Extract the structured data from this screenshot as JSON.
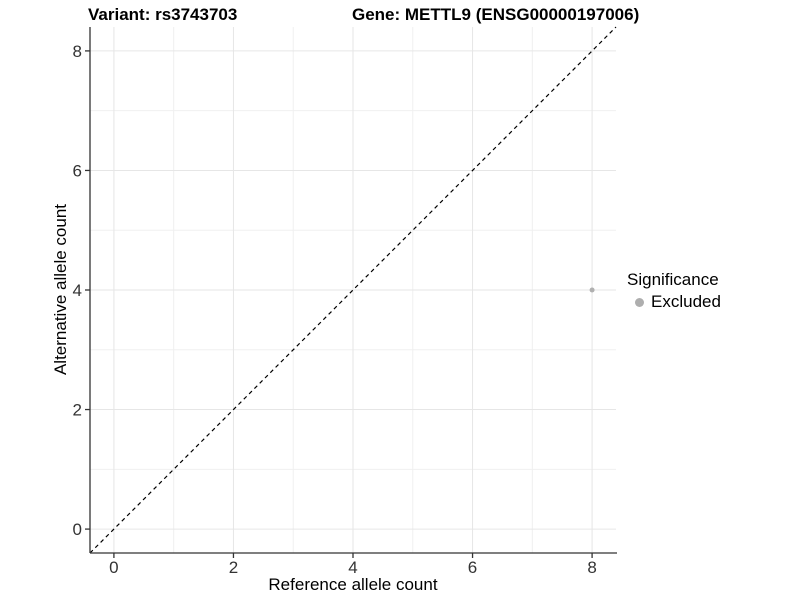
{
  "chart_data": {
    "type": "scatter",
    "titles": {
      "left": "Variant: rs3743703",
      "right": "Gene: METTL9 (ENSG00000197006)"
    },
    "xlabel": "Reference allele count",
    "ylabel": "Alternative allele count",
    "xlim": [
      -0.4,
      8.4
    ],
    "ylim": [
      -0.4,
      8.4
    ],
    "xticks": [
      0,
      2,
      4,
      6,
      8
    ],
    "yticks": [
      0,
      2,
      4,
      6,
      8
    ],
    "xticks_minor": [
      1,
      3,
      5,
      7
    ],
    "yticks_minor": [
      1,
      3,
      5,
      7
    ],
    "grid": "major+minor",
    "reference_line": {
      "type": "identity",
      "style": "dashed",
      "color": "#000000"
    },
    "series": [
      {
        "name": "Excluded",
        "color": "#b0b0b0",
        "marker": "circle",
        "points": [
          {
            "x": 8,
            "y": 4
          }
        ]
      }
    ],
    "legend": {
      "title": "Significance",
      "position": "right",
      "items": [
        {
          "label": "Excluded",
          "color": "#aeaeae"
        }
      ]
    },
    "style": {
      "background": "#ffffff",
      "grid_major_color": "#e6e6e6",
      "grid_minor_color": "#f0f0f0",
      "axis_line_color": "#333333",
      "tick_color": "#333333",
      "tick_label_color": "#333333",
      "text_color": "#000000"
    }
  }
}
